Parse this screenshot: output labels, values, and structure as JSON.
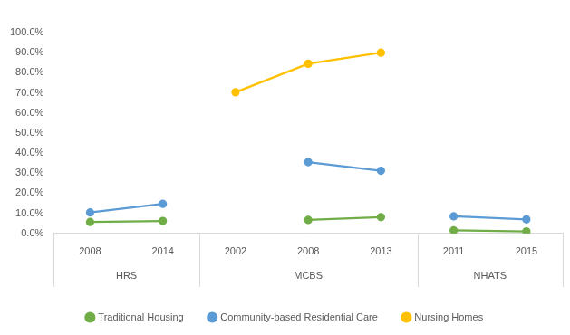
{
  "chart_data": {
    "type": "line",
    "groups": [
      {
        "name": "HRS",
        "categories": [
          "2008",
          "2014"
        ]
      },
      {
        "name": "MCBS",
        "categories": [
          "2002",
          "2008",
          "2013"
        ]
      },
      {
        "name": "NHATS",
        "categories": [
          "2011",
          "2015"
        ]
      }
    ],
    "series": [
      {
        "name": "Traditional Housing",
        "color": "#70ad47",
        "values": [
          5.7,
          6.2,
          null,
          6.7,
          8.1,
          1.5,
          1.0
        ]
      },
      {
        "name": "Community-based Residential Care",
        "color": "#5b9bd5",
        "values": [
          10.4,
          14.7,
          null,
          35.5,
          31.2,
          8.5,
          7.0
        ]
      },
      {
        "name": "Nursing Homes",
        "color": "#ffc000",
        "values": [
          null,
          null,
          70.3,
          84.5,
          90.0,
          null,
          null
        ]
      }
    ],
    "ylim": [
      0,
      100
    ],
    "yticks": [
      {
        "value": 0,
        "label": "0.0%"
      },
      {
        "value": 10,
        "label": "10.0%"
      },
      {
        "value": 20,
        "label": "20.0%"
      },
      {
        "value": 30,
        "label": "30.0%"
      },
      {
        "value": 40,
        "label": "40.0%"
      },
      {
        "value": 50,
        "label": "50.0%"
      },
      {
        "value": 60,
        "label": "60.0%"
      },
      {
        "value": 70,
        "label": "70.0%"
      },
      {
        "value": 80,
        "label": "80.0%"
      },
      {
        "value": 90,
        "label": "90.0%"
      },
      {
        "value": 100,
        "label": "100.0%"
      }
    ],
    "grid": false,
    "legend": "bottom",
    "marker": "circle"
  }
}
